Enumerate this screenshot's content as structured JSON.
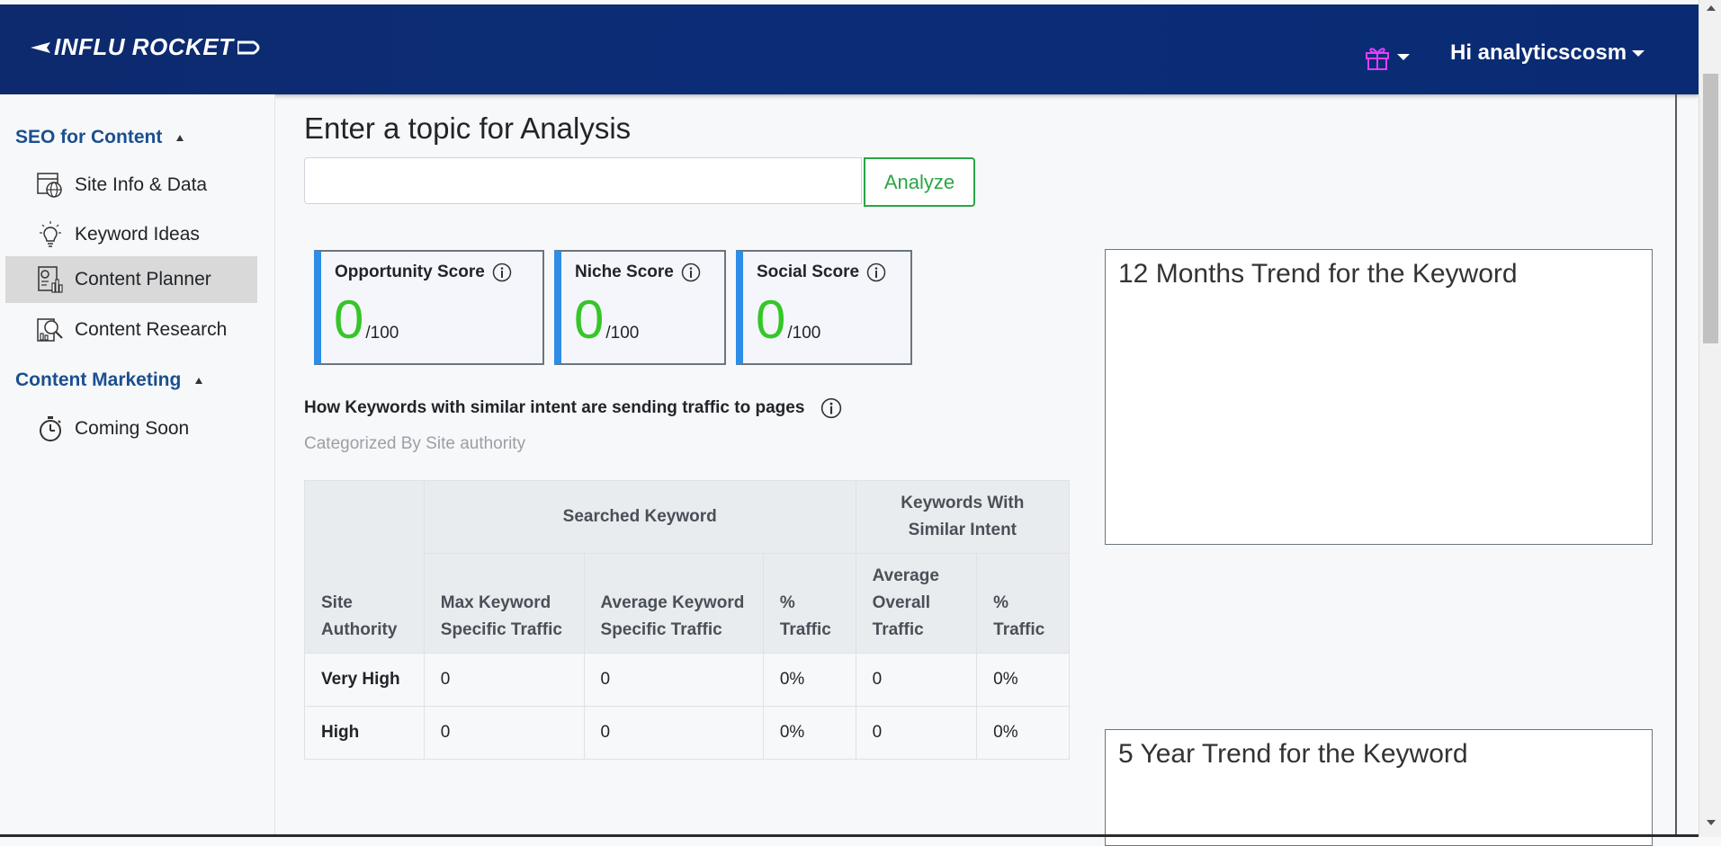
{
  "header": {
    "logo_text": "INFLU ROCKET",
    "greeting": "Hi analyticscosm"
  },
  "sidebar": {
    "sections": [
      {
        "title": "SEO for Content",
        "items": [
          {
            "label": "Site Info & Data",
            "icon": "globe-grid-icon"
          },
          {
            "label": "Keyword Ideas",
            "icon": "lightbulb-icon"
          },
          {
            "label": "Content Planner",
            "icon": "planner-chart-icon",
            "active": true
          },
          {
            "label": "Content Research",
            "icon": "research-magnifier-icon"
          }
        ]
      },
      {
        "title": "Content Marketing",
        "items": [
          {
            "label": "Coming Soon",
            "icon": "stopwatch-icon"
          }
        ]
      }
    ]
  },
  "main": {
    "title": "Enter a topic for Analysis",
    "input_value": "",
    "analyze_label": "Analyze",
    "scores": [
      {
        "label": "Opportunity Score",
        "value": "0",
        "max": "/100"
      },
      {
        "label": "Niche Score",
        "value": "0",
        "max": "/100"
      },
      {
        "label": "Social Score",
        "value": "0",
        "max": "/100"
      }
    ],
    "traffic_heading": "How Keywords with similar intent are sending traffic to pages",
    "traffic_caption": "Categorized By Site authority",
    "table": {
      "group_headers": {
        "site_authority": "Site Authority",
        "searched": "Searched Keyword",
        "similar": "Keywords With Similar Intent"
      },
      "columns": [
        "Max Keyword Specific Traffic",
        "Average Keyword Specific Traffic",
        "% Traffic",
        "Average Overall Traffic",
        "% Traffic"
      ],
      "rows": [
        {
          "authority": "Very High",
          "cells": [
            "0",
            "0",
            "0%",
            "0",
            "0%"
          ]
        },
        {
          "authority": "High",
          "cells": [
            "0",
            "0",
            "0%",
            "0",
            "0%"
          ]
        }
      ]
    },
    "trend_12m_title": "12 Months Trend for the Keyword",
    "trend_5y_title": "5 Year Trend for the Keyword"
  },
  "colors": {
    "header_bg": "#0b2d78",
    "accent_blue": "#2e8de6",
    "score_green": "#35c628",
    "analyze_green": "#28a745",
    "section_title": "#1b4f8f",
    "gift_pink": "#e040fb"
  }
}
